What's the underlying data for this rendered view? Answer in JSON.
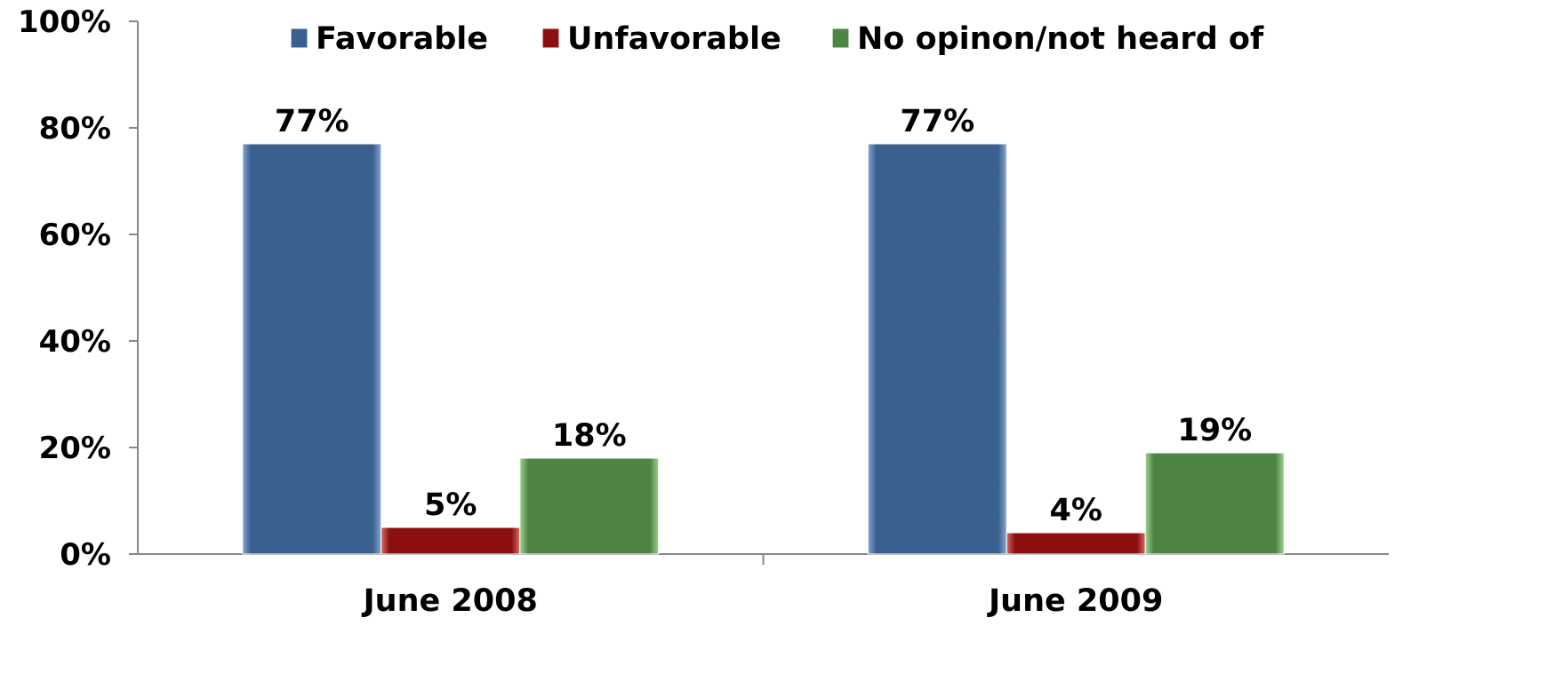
{
  "chart_data": {
    "type": "bar",
    "categories": [
      "June 2008",
      "June 2009"
    ],
    "series": [
      {
        "name": "Favorable",
        "values": [
          77,
          77
        ],
        "color": "#3A6090"
      },
      {
        "name": "Unfavorable",
        "values": [
          5,
          4
        ],
        "color": "#8C0F0F"
      },
      {
        "name": "No opinon/not heard of",
        "values": [
          18,
          19
        ],
        "color": "#4E8544"
      }
    ],
    "data_labels": [
      [
        "77%",
        "77%"
      ],
      [
        "5%",
        "4%"
      ],
      [
        "18%",
        "19%"
      ]
    ],
    "ylim": [
      0,
      100
    ],
    "yticks": [
      "0%",
      "20%",
      "40%",
      "60%",
      "80%",
      "100%"
    ],
    "ytick_values": [
      0,
      20,
      40,
      60,
      80,
      100
    ],
    "legend_position": "top",
    "grid": false,
    "title": "",
    "xlabel": "",
    "ylabel": ""
  }
}
